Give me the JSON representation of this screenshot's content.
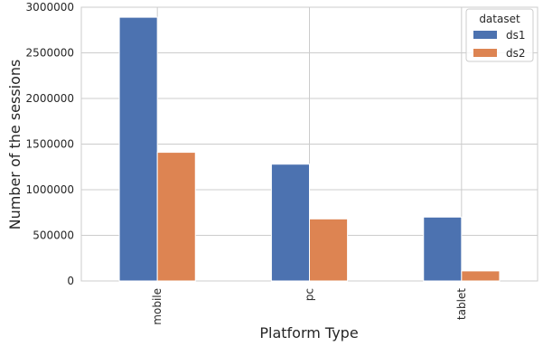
{
  "chart_data": {
    "type": "bar",
    "categories": [
      "mobile",
      "pc",
      "tablet"
    ],
    "series": [
      {
        "name": "ds1",
        "values": [
          2890000,
          1280000,
          700000
        ],
        "color": "#4c72b0"
      },
      {
        "name": "ds2",
        "values": [
          1410000,
          680000,
          110000
        ],
        "color": "#dd8452"
      }
    ],
    "xlabel": "Platform Type",
    "ylabel": "Number of the sessions",
    "ylim": [
      0,
      3000000
    ],
    "yticks": [
      0,
      500000,
      1000000,
      1500000,
      2000000,
      2500000,
      3000000
    ],
    "ytick_labels": [
      "0",
      "500000",
      "1000000",
      "1500000",
      "2000000",
      "2500000",
      "3000000"
    ],
    "grid": true,
    "legend": {
      "title": "dataset",
      "placement": "top-right"
    }
  }
}
